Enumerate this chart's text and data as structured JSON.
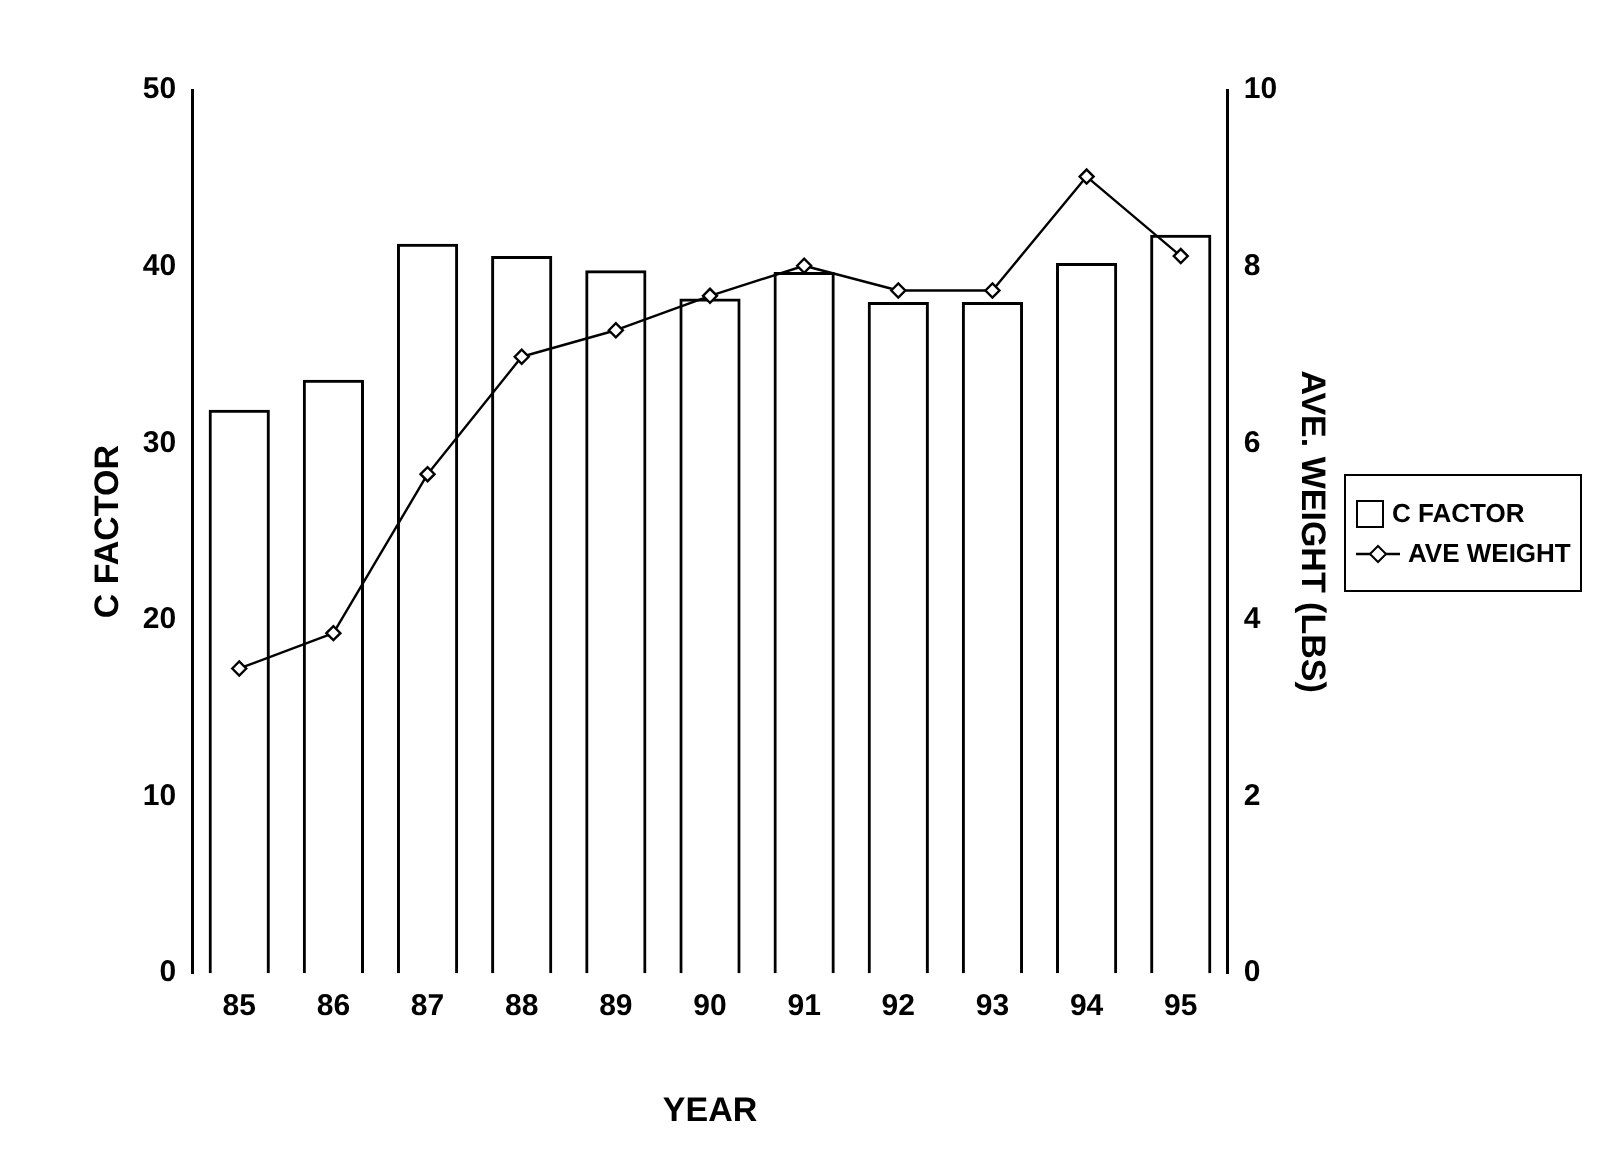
{
  "chart_data": {
    "type": "bar",
    "xlabel": "YEAR",
    "ylabel": "C FACTOR",
    "y2label": "AVE. WEIGHT (LBS)",
    "categories": [
      "85",
      "86",
      "87",
      "88",
      "89",
      "90",
      "91",
      "92",
      "93",
      "94",
      "95"
    ],
    "series": [
      {
        "name": "C FACTOR",
        "color": "#000000",
        "values": [
          31.9,
          33.6,
          41.3,
          40.6,
          39.8,
          38.2,
          39.7,
          38.0,
          38.0,
          40.2,
          41.8
        ]
      },
      {
        "name": "AVE WEIGHT",
        "type": "line",
        "axis": "y2",
        "color": "#000000",
        "marker": "diamond",
        "line_style": "solid",
        "values": [
          3.45,
          3.85,
          5.65,
          6.98,
          7.28,
          7.67,
          8.01,
          7.73,
          7.73,
          9.02,
          8.12
        ]
      }
    ],
    "ylim": [
      0,
      50
    ],
    "yticks": [
      0,
      10,
      20,
      30,
      40,
      50
    ],
    "y2lim": [
      0,
      10
    ],
    "y2ticks": [
      0,
      2,
      4,
      6,
      8,
      10
    ],
    "grid": false,
    "legend": "right"
  }
}
